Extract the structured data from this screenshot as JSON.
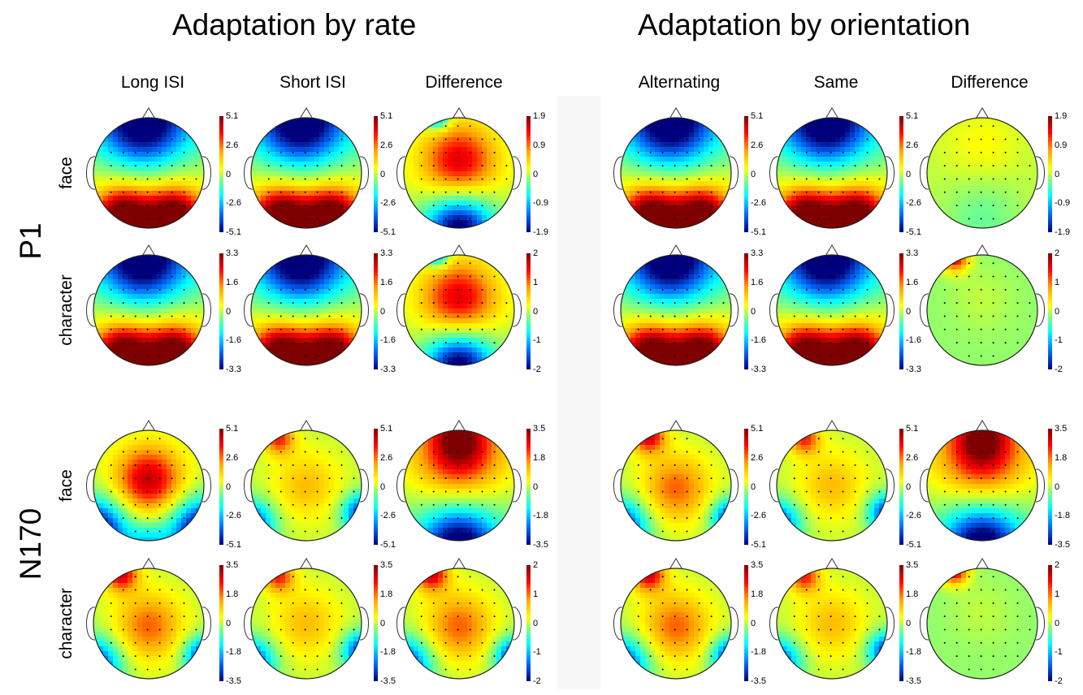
{
  "titles": {
    "left": "Adaptation by rate",
    "right": "Adaptation by orientation"
  },
  "columns": [
    "Long ISI",
    "Short ISI",
    "Difference",
    "Alternating",
    "Same",
    "Difference"
  ],
  "components": [
    "P1",
    "N170"
  ],
  "rows": [
    {
      "component": "P1",
      "stimulus": "face"
    },
    {
      "component": "P1",
      "stimulus": "character"
    },
    {
      "component": "N170",
      "stimulus": "face"
    },
    {
      "component": "N170",
      "stimulus": "character"
    }
  ],
  "colorbars": [
    [
      [
        "5.1",
        "2.6",
        "0",
        "-2.6",
        "-5.1"
      ],
      [
        "5.1",
        "2.6",
        "0",
        "-2.6",
        "-5.1"
      ],
      [
        "1.9",
        "0.9",
        "0",
        "-0.9",
        "-1.9"
      ],
      [
        "5.1",
        "2.6",
        "0",
        "-2.6",
        "-5.1"
      ],
      [
        "5.1",
        "2.6",
        "0",
        "-2.6",
        "-5.1"
      ],
      [
        "1.9",
        "0.9",
        "0",
        "-0.9",
        "-1.9"
      ]
    ],
    [
      [
        "3.3",
        "1.6",
        "0",
        "-1.6",
        "-3.3"
      ],
      [
        "3.3",
        "1.6",
        "0",
        "-1.6",
        "-3.3"
      ],
      [
        "2",
        "1",
        "0",
        "-1",
        "-2"
      ],
      [
        "3.3",
        "1.6",
        "0",
        "-1.6",
        "-3.3"
      ],
      [
        "3.3",
        "1.6",
        "0",
        "-1.6",
        "-3.3"
      ],
      [
        "2",
        "1",
        "0",
        "-1",
        "-2"
      ]
    ],
    [
      [
        "5.1",
        "2.6",
        "0",
        "-2.6",
        "-5.1"
      ],
      [
        "5.1",
        "2.6",
        "0",
        "-2.6",
        "-5.1"
      ],
      [
        "3.5",
        "1.8",
        "0",
        "-1.8",
        "-3.5"
      ],
      [
        "5.1",
        "2.6",
        "0",
        "-2.6",
        "-5.1"
      ],
      [
        "5.1",
        "2.6",
        "0",
        "-2.6",
        "-5.1"
      ],
      [
        "3.5",
        "1.8",
        "0",
        "-1.8",
        "-3.5"
      ]
    ],
    [
      [
        "3.5",
        "1.8",
        "0",
        "-1.8",
        "-3.5"
      ],
      [
        "3.5",
        "1.8",
        "0",
        "-1.8",
        "-3.5"
      ],
      [
        "2",
        "1",
        "0",
        "-1",
        "-2"
      ],
      [
        "3.5",
        "1.8",
        "0",
        "-1.8",
        "-3.5"
      ],
      [
        "3.5",
        "1.8",
        "0",
        "-1.8",
        "-3.5"
      ],
      [
        "2",
        "1",
        "0",
        "-1",
        "-2"
      ]
    ]
  ],
  "colormap": [
    "#00007f",
    "#0070ff",
    "#00ffff",
    "#7fff7f",
    "#ffff00",
    "#ffa500",
    "#ff0000",
    "#7f0000"
  ]
}
